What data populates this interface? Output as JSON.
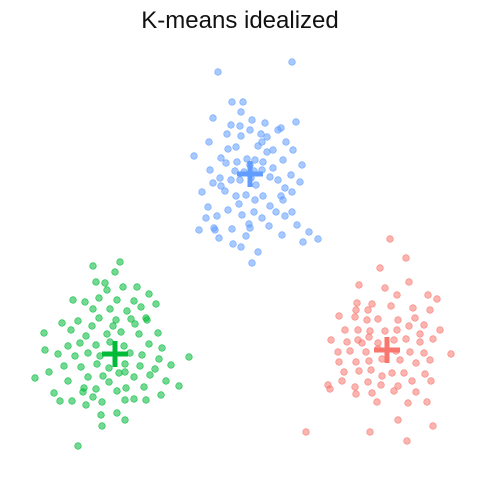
{
  "chart_data": {
    "type": "scatter",
    "title": "K-means idealized",
    "xlabel": "",
    "ylabel": "",
    "grid": false,
    "legend": "none",
    "series": [
      {
        "color": "#619CFF",
        "centroid": [
          250,
          174
        ],
        "points": [
          [
            218,
            72
          ],
          [
            292,
            62
          ],
          [
            232,
            102
          ],
          [
            243,
            102
          ],
          [
            213,
            118
          ],
          [
            241,
            112
          ],
          [
            252,
            120
          ],
          [
            265,
            123
          ],
          [
            296,
            122
          ],
          [
            231,
            125
          ],
          [
            281,
            128
          ],
          [
            250,
            130
          ],
          [
            227,
            134
          ],
          [
            261,
            134
          ],
          [
            241,
            136
          ],
          [
            267,
            137
          ],
          [
            278,
            130
          ],
          [
            209,
            142
          ],
          [
            286,
            142
          ],
          [
            236,
            147
          ],
          [
            258,
            146
          ],
          [
            293,
            150
          ],
          [
            194,
            156
          ],
          [
            221,
            158
          ],
          [
            247,
            159
          ],
          [
            267,
            152
          ],
          [
            226,
            163
          ],
          [
            237,
            162
          ],
          [
            250,
            165
          ],
          [
            255,
            160
          ],
          [
            263,
            162
          ],
          [
            283,
            160
          ],
          [
            302,
            165
          ],
          [
            210,
            170
          ],
          [
            235,
            171
          ],
          [
            244,
            172
          ],
          [
            254,
            171
          ],
          [
            262,
            170
          ],
          [
            273,
            168
          ],
          [
            220,
            178
          ],
          [
            231,
            180
          ],
          [
            240,
            180
          ],
          [
            251,
            178
          ],
          [
            270,
            177
          ],
          [
            278,
            180
          ],
          [
            291,
            175
          ],
          [
            213,
            183
          ],
          [
            256,
            185
          ],
          [
            285,
            188
          ],
          [
            300,
            182
          ],
          [
            202,
            192
          ],
          [
            225,
            191
          ],
          [
            246,
            195
          ],
          [
            263,
            196
          ],
          [
            281,
            196
          ],
          [
            292,
            192
          ],
          [
            239,
            204
          ],
          [
            270,
            206
          ],
          [
            228,
            210
          ],
          [
            254,
            212
          ],
          [
            292,
            212
          ],
          [
            206,
            218
          ],
          [
            217,
            216
          ],
          [
            242,
            215
          ],
          [
            262,
            218
          ],
          [
            285,
            216
          ],
          [
            199,
            230
          ],
          [
            214,
            228
          ],
          [
            232,
            229
          ],
          [
            250,
            228
          ],
          [
            269,
            226
          ],
          [
            297,
            225
          ],
          [
            219,
            238
          ],
          [
            246,
            236
          ],
          [
            282,
            235
          ],
          [
            309,
            232
          ],
          [
            233,
            244
          ],
          [
            303,
            242
          ],
          [
            318,
            239
          ],
          [
            241,
            247
          ],
          [
            252,
            263
          ],
          [
            215,
            230
          ],
          [
            276,
            212
          ],
          [
            236,
            196
          ],
          [
            262,
            142
          ],
          [
            228,
            149
          ],
          [
            273,
            150
          ],
          [
            240,
            126
          ],
          [
            221,
            186
          ],
          [
            283,
            200
          ],
          [
            249,
            224
          ],
          [
            208,
            207
          ],
          [
            258,
            252
          ],
          [
            255,
            200
          ]
        ]
      },
      {
        "color": "#00BA38",
        "centroid": [
          115,
          354
        ],
        "points": [
          [
            78,
            446
          ],
          [
            93,
            266
          ],
          [
            115,
            272
          ],
          [
            120,
            262
          ],
          [
            96,
            282
          ],
          [
            105,
            283
          ],
          [
            123,
            287
          ],
          [
            137,
            287
          ],
          [
            73,
            300
          ],
          [
            85,
            302
          ],
          [
            99,
            298
          ],
          [
            117,
            300
          ],
          [
            134,
            301
          ],
          [
            149,
            294
          ],
          [
            93,
            309
          ],
          [
            110,
            309
          ],
          [
            127,
            311
          ],
          [
            141,
            307
          ],
          [
            156,
            304
          ],
          [
            62,
            323
          ],
          [
            78,
            321
          ],
          [
            99,
            318
          ],
          [
            116,
            320
          ],
          [
            131,
            319
          ],
          [
            146,
            318
          ],
          [
            44,
            333
          ],
          [
            71,
            330
          ],
          [
            86,
            336
          ],
          [
            107,
            334
          ],
          [
            121,
            332
          ],
          [
            139,
            334
          ],
          [
            158,
            333
          ],
          [
            68,
            346
          ],
          [
            80,
            343
          ],
          [
            96,
            345
          ],
          [
            110,
            342
          ],
          [
            124,
            346
          ],
          [
            149,
            344
          ],
          [
            162,
            348
          ],
          [
            45,
            350
          ],
          [
            58,
            354
          ],
          [
            75,
            356
          ],
          [
            88,
            353
          ],
          [
            100,
            356
          ],
          [
            130,
            353
          ],
          [
            142,
            355
          ],
          [
            159,
            359
          ],
          [
            189,
            357
          ],
          [
            64,
            366
          ],
          [
            81,
            367
          ],
          [
            97,
            364
          ],
          [
            109,
            368
          ],
          [
            125,
            364
          ],
          [
            140,
            366
          ],
          [
            155,
            369
          ],
          [
            171,
            365
          ],
          [
            49,
            372
          ],
          [
            88,
            377
          ],
          [
            103,
            376
          ],
          [
            119,
            373
          ],
          [
            134,
            377
          ],
          [
            150,
            375
          ],
          [
            35,
            378
          ],
          [
            68,
            381
          ],
          [
            109,
            382
          ],
          [
            126,
            388
          ],
          [
            144,
            387
          ],
          [
            179,
            386
          ],
          [
            54,
            393
          ],
          [
            83,
            392
          ],
          [
            96,
            389
          ],
          [
            117,
            391
          ],
          [
            161,
            395
          ],
          [
            72,
            401
          ],
          [
            86,
            405
          ],
          [
            102,
            402
          ],
          [
            125,
            400
          ],
          [
            146,
            400
          ],
          [
            101,
            415
          ],
          [
            117,
            413
          ],
          [
            102,
            426
          ],
          [
            125,
            420
          ],
          [
            147,
            320
          ],
          [
            135,
            324
          ],
          [
            92,
            326
          ],
          [
            113,
            326
          ],
          [
            125,
            372
          ],
          [
            93,
            397
          ],
          [
            166,
            381
          ],
          [
            134,
            399
          ],
          [
            84,
            388
          ],
          [
            107,
            290
          ],
          [
            60,
            401
          ]
        ]
      },
      {
        "color": "#F8766D",
        "centroid": [
          387,
          350
        ],
        "points": [
          [
            390,
            239
          ],
          [
            406,
            258
          ],
          [
            380,
            268
          ],
          [
            409,
            282
          ],
          [
            359,
            285
          ],
          [
            385,
            288
          ],
          [
            428,
            295
          ],
          [
            437,
            299
          ],
          [
            357,
            303
          ],
          [
            372,
            304
          ],
          [
            391,
            306
          ],
          [
            413,
            308
          ],
          [
            430,
            310
          ],
          [
            339,
            316
          ],
          [
            355,
            317
          ],
          [
            367,
            320
          ],
          [
            378,
            319
          ],
          [
            398,
            320
          ],
          [
            415,
            318
          ],
          [
            345,
            330
          ],
          [
            358,
            330
          ],
          [
            370,
            331
          ],
          [
            385,
            331
          ],
          [
            397,
            330
          ],
          [
            409,
            326
          ],
          [
            424,
            325
          ],
          [
            440,
            330
          ],
          [
            331,
            340
          ],
          [
            347,
            342
          ],
          [
            358,
            340
          ],
          [
            369,
            337
          ],
          [
            378,
            343
          ],
          [
            394,
            340
          ],
          [
            406,
            339
          ],
          [
            420,
            342
          ],
          [
            433,
            339
          ],
          [
            338,
            352
          ],
          [
            350,
            351
          ],
          [
            366,
            352
          ],
          [
            378,
            349
          ],
          [
            396,
            351
          ],
          [
            410,
            352
          ],
          [
            424,
            353
          ],
          [
            451,
            354
          ],
          [
            339,
            362
          ],
          [
            356,
            362
          ],
          [
            369,
            361
          ],
          [
            382,
            359
          ],
          [
            400,
            360
          ],
          [
            416,
            363
          ],
          [
            430,
            360
          ],
          [
            344,
            372
          ],
          [
            359,
            371
          ],
          [
            371,
            370
          ],
          [
            392,
            373
          ],
          [
            404,
            373
          ],
          [
            425,
            374
          ],
          [
            328,
            385
          ],
          [
            342,
            381
          ],
          [
            355,
            387
          ],
          [
            368,
            382
          ],
          [
            381,
            385
          ],
          [
            398,
            386
          ],
          [
            412,
            381
          ],
          [
            431,
            381
          ],
          [
            356,
            394
          ],
          [
            372,
            393
          ],
          [
            394,
            391
          ],
          [
            416,
            392
          ],
          [
            377,
            402
          ],
          [
            427,
            402
          ],
          [
            398,
            420
          ],
          [
            433,
            426
          ],
          [
            306,
            432
          ],
          [
            370,
            432
          ],
          [
            407,
            441
          ],
          [
            408,
            403
          ],
          [
            368,
            310
          ],
          [
            397,
            295
          ],
          [
            382,
            376
          ],
          [
            330,
            389
          ],
          [
            356,
            310
          ],
          [
            420,
            334
          ],
          [
            362,
            343
          ]
        ]
      }
    ]
  }
}
